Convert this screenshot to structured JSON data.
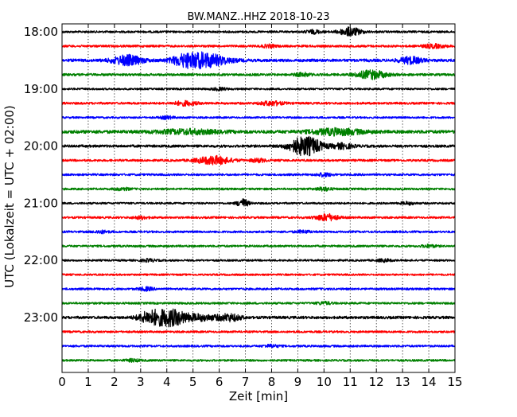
{
  "chart_data": {
    "type": "line",
    "title": "BW.MANZ..HHZ 2018-10-23",
    "xlabel": "Zeit  [min]",
    "ylabel": "UTC (Lokalzeit = UTC + 02:00)",
    "xlim": [
      0,
      15
    ],
    "x_ticks": [
      "0",
      "1",
      "2",
      "3",
      "4",
      "5",
      "6",
      "7",
      "8",
      "9",
      "10",
      "11",
      "12",
      "13",
      "14",
      "15"
    ],
    "y_hour_labels": [
      "18:00",
      "19:00",
      "20:00",
      "21:00",
      "22:00",
      "23:00"
    ],
    "trace_interval_min": 15,
    "grid": "vertical dotted",
    "color_cycle": [
      "#000000",
      "#ff0000",
      "#0000ff",
      "#008000"
    ],
    "traces": [
      {
        "start": "18:00",
        "noise": 1.3,
        "events": [
          [
            11.0,
            5,
            0.3
          ],
          [
            9.6,
            2,
            0.2
          ]
        ]
      },
      {
        "start": "18:15",
        "noise": 1.4,
        "events": [
          [
            14.2,
            2,
            0.3
          ],
          [
            7.9,
            1.5,
            0.2
          ]
        ]
      },
      {
        "start": "18:30",
        "noise": 1.8,
        "events": [
          [
            2.5,
            6,
            0.4
          ],
          [
            5.4,
            9,
            0.6
          ],
          [
            4.6,
            4,
            0.3
          ],
          [
            13.3,
            4,
            0.3
          ]
        ]
      },
      {
        "start": "18:45",
        "noise": 1.5,
        "events": [
          [
            11.8,
            5,
            0.4
          ],
          [
            9.2,
            2,
            0.2
          ]
        ]
      },
      {
        "start": "19:00",
        "noise": 1.2,
        "events": [
          [
            6.0,
            1.5,
            0.2
          ]
        ]
      },
      {
        "start": "19:15",
        "noise": 1.4,
        "events": [
          [
            4.7,
            2.5,
            0.3
          ],
          [
            8.0,
            2.5,
            0.3
          ]
        ]
      },
      {
        "start": "19:30",
        "noise": 1.2,
        "events": [
          [
            4.0,
            1.5,
            0.2
          ]
        ]
      },
      {
        "start": "19:45",
        "noise": 2.0,
        "events": [
          [
            4.8,
            2.5,
            0.8
          ],
          [
            10.5,
            3.5,
            0.7
          ]
        ]
      },
      {
        "start": "20:00",
        "noise": 1.6,
        "events": [
          [
            9.1,
            9,
            0.35
          ],
          [
            9.6,
            6,
            0.3
          ],
          [
            10.7,
            3,
            0.3
          ]
        ]
      },
      {
        "start": "20:15",
        "noise": 1.4,
        "events": [
          [
            5.8,
            5,
            0.45
          ],
          [
            7.5,
            2,
            0.2
          ]
        ]
      },
      {
        "start": "20:30",
        "noise": 1.3,
        "events": [
          [
            10.0,
            2,
            0.2
          ]
        ]
      },
      {
        "start": "20:45",
        "noise": 1.3,
        "events": [
          [
            10.0,
            2,
            0.2
          ],
          [
            2.3,
            1.5,
            0.2
          ]
        ]
      },
      {
        "start": "21:00",
        "noise": 1.2,
        "events": [
          [
            6.9,
            5,
            0.15
          ],
          [
            13.2,
            1.5,
            0.2
          ]
        ]
      },
      {
        "start": "21:15",
        "noise": 1.3,
        "events": [
          [
            10.1,
            4,
            0.3
          ],
          [
            3.0,
            1.5,
            0.2
          ]
        ]
      },
      {
        "start": "21:30",
        "noise": 1.3,
        "events": [
          [
            1.5,
            1.5,
            0.2
          ],
          [
            9.2,
            1.5,
            0.2
          ]
        ]
      },
      {
        "start": "21:45",
        "noise": 1.3,
        "events": [
          [
            14.0,
            1.5,
            0.2
          ]
        ]
      },
      {
        "start": "22:00",
        "noise": 1.2,
        "events": [
          [
            3.3,
            1.5,
            0.2
          ],
          [
            12.3,
            1.5,
            0.2
          ]
        ]
      },
      {
        "start": "22:15",
        "noise": 1.2,
        "events": []
      },
      {
        "start": "22:30",
        "noise": 1.3,
        "events": [
          [
            3.2,
            2,
            0.2
          ]
        ]
      },
      {
        "start": "22:45",
        "noise": 1.3,
        "events": [
          [
            10.0,
            1.5,
            0.2
          ]
        ]
      },
      {
        "start": "23:00",
        "noise": 1.7,
        "events": [
          [
            4.1,
            10,
            0.5
          ],
          [
            3.3,
            5,
            0.3
          ],
          [
            5.4,
            3,
            0.4
          ],
          [
            6.4,
            4,
            0.3
          ]
        ]
      },
      {
        "start": "23:15",
        "noise": 1.3,
        "events": []
      },
      {
        "start": "23:30",
        "noise": 1.3,
        "events": [
          [
            8.0,
            1.5,
            0.2
          ]
        ]
      },
      {
        "start": "23:45",
        "noise": 1.3,
        "events": [
          [
            2.7,
            1.5,
            0.2
          ]
        ]
      }
    ]
  }
}
